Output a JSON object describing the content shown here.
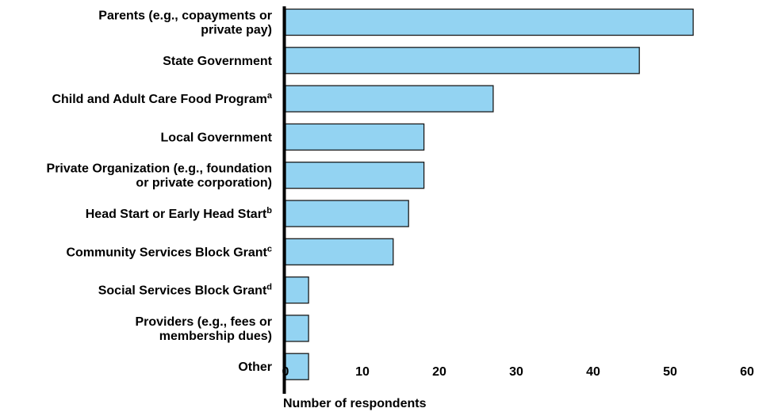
{
  "chart_data": {
    "type": "bar",
    "orientation": "horizontal",
    "categories": [
      {
        "lines": [
          "Parents (e.g., copayments or",
          "private pay)"
        ],
        "sup": ""
      },
      {
        "lines": [
          "State Government"
        ],
        "sup": ""
      },
      {
        "lines": [
          "Child and Adult Care Food Program"
        ],
        "sup": "a"
      },
      {
        "lines": [
          "Local Government"
        ],
        "sup": ""
      },
      {
        "lines": [
          "Private Organization (e.g., foundation",
          "or private corporation)"
        ],
        "sup": ""
      },
      {
        "lines": [
          "Head Start or Early Head Start"
        ],
        "sup": "b"
      },
      {
        "lines": [
          "Community Services Block Grant"
        ],
        "sup": "c"
      },
      {
        "lines": [
          "Social Services Block Grant"
        ],
        "sup": "d"
      },
      {
        "lines": [
          "Providers (e.g., fees or",
          "membership dues)"
        ],
        "sup": ""
      },
      {
        "lines": [
          "Other"
        ],
        "sup": ""
      }
    ],
    "values": [
      53,
      46,
      27,
      18,
      18,
      16,
      14,
      3,
      3,
      3
    ],
    "xlabel": "Number of respondents",
    "ylabel": "",
    "xlim": [
      0,
      60
    ],
    "xticks": [
      "0",
      "10",
      "20",
      "30",
      "40",
      "50",
      "60"
    ],
    "grid": false,
    "legend": "none",
    "colors": {
      "bar_fill": "#93d3f2",
      "bar_stroke": "#1a1a1a",
      "axis": "#000000"
    }
  }
}
